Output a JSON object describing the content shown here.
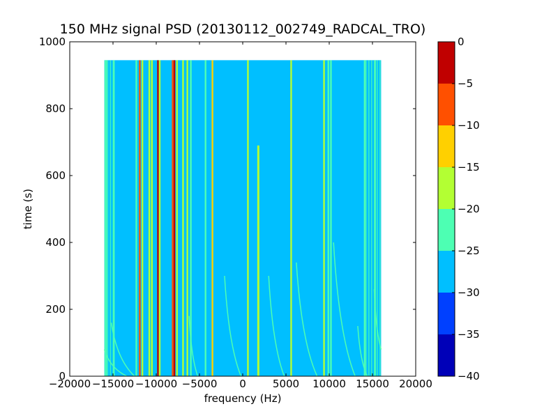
{
  "chart_data": {
    "type": "heatmap",
    "title": "150 MHz signal PSD (20130112_002749_RADCAL_TRO)",
    "xlabel": "frequency (Hz)",
    "ylabel": "time (s)",
    "xlim": [
      -20000,
      20000
    ],
    "ylim": [
      0,
      1000
    ],
    "xticks": [
      -20000,
      -15000,
      -10000,
      -5000,
      0,
      5000,
      10000,
      15000,
      20000
    ],
    "xtick_labels": [
      "−20000",
      "−15000",
      "−10000",
      "−5000",
      "0",
      "5000",
      "10000",
      "15000",
      "20000"
    ],
    "yticks": [
      0,
      200,
      400,
      600,
      800,
      1000
    ],
    "ytick_labels": [
      "0",
      "200",
      "400",
      "600",
      "800",
      "1000"
    ],
    "data_extent": {
      "x": [
        -16000,
        16000
      ],
      "t": [
        0,
        945
      ]
    },
    "background_level": -27.5,
    "colorbar": {
      "levels": [
        -40,
        -35,
        -30,
        -25,
        -20,
        -15,
        -10,
        -5,
        0
      ],
      "tick_labels": [
        "−40",
        "−35",
        "−30",
        "−25",
        "−20",
        "−15",
        "−10",
        "−5",
        "0"
      ],
      "colors": [
        "#0000b8",
        "#0040ff",
        "#00bfff",
        "#4dffb3",
        "#b3ff33",
        "#ffd000",
        "#ff5000",
        "#c00000"
      ]
    },
    "vertical_lines": [
      {
        "freq": -15800,
        "level": -22.5
      },
      {
        "freq": -14900,
        "level": -22.5
      },
      {
        "freq": -12300,
        "level": -22.5
      },
      {
        "freq": -11900,
        "level": -7.5
      },
      {
        "freq": -11600,
        "level": -17.5
      },
      {
        "freq": -10800,
        "level": -17.5
      },
      {
        "freq": -10500,
        "level": -17.5
      },
      {
        "freq": -9800,
        "level": -2.5
      },
      {
        "freq": -9600,
        "level": -17.5
      },
      {
        "freq": -8100,
        "level": -7.5
      },
      {
        "freq": -7900,
        "level": -2.5
      },
      {
        "freq": -7600,
        "level": -17.5
      },
      {
        "freq": -6900,
        "level": -17.5
      },
      {
        "freq": -6400,
        "level": -17.5
      },
      {
        "freq": -6000,
        "level": -22.5
      },
      {
        "freq": -4300,
        "level": -22.5
      },
      {
        "freq": -3500,
        "level": -12.5
      },
      {
        "freq": 600,
        "level": -17.5
      },
      {
        "freq": 5600,
        "level": -17.5
      },
      {
        "freq": 9400,
        "level": -17.5
      },
      {
        "freq": 9900,
        "level": -22.5
      },
      {
        "freq": 10200,
        "level": -22.5
      },
      {
        "freq": 14100,
        "level": -22.5
      },
      {
        "freq": 15300,
        "level": -22.5
      }
    ],
    "segments": [
      {
        "freq": 1800,
        "t_start": 0,
        "t_end": 690,
        "level": -17.5
      }
    ],
    "drift_tracks": [
      {
        "freq_start": -16000,
        "t_start": 80,
        "freq_end": -13400,
        "t_end": 0,
        "level": -22.5
      },
      {
        "freq_start": -15200,
        "t_start": 160,
        "freq_end": -12500,
        "t_end": 0,
        "level": -22.5
      },
      {
        "freq_start": -6200,
        "t_start": 180,
        "freq_end": -5200,
        "t_end": 0,
        "level": -22.5
      },
      {
        "freq_start": -2100,
        "t_start": 300,
        "freq_end": -200,
        "t_end": 0,
        "level": -22.5
      },
      {
        "freq_start": 3000,
        "t_start": 300,
        "freq_end": 4800,
        "t_end": 0,
        "level": -22.5
      },
      {
        "freq_start": 6200,
        "t_start": 340,
        "freq_end": 8600,
        "t_end": 0,
        "level": -22.5
      },
      {
        "freq_start": 10500,
        "t_start": 400,
        "freq_end": 13000,
        "t_end": 0,
        "level": -22.5
      },
      {
        "freq_start": 13300,
        "t_start": 150,
        "freq_end": 14400,
        "t_end": 0,
        "level": -22.5
      },
      {
        "freq_start": 15200,
        "t_start": 260,
        "freq_end": 16000,
        "t_end": 80,
        "level": -22.5
      }
    ],
    "edge_bands": [
      {
        "freq_start": -16000,
        "freq_end": -15000,
        "level": -22.5
      },
      {
        "freq_start": 14200,
        "freq_end": 16000,
        "level": -22.5
      }
    ]
  }
}
